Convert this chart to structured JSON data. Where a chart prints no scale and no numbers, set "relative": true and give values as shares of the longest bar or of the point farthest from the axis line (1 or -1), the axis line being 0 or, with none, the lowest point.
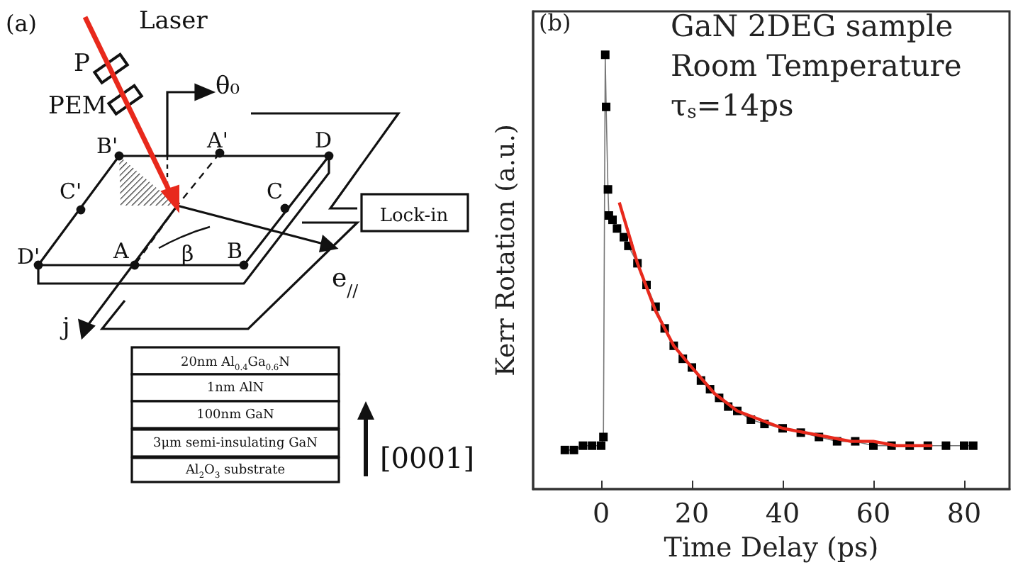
{
  "chart_data": [
    {
      "type": "other",
      "annotations": [
        "(a)",
        "Laser",
        "P",
        "PEM",
        "θ₀",
        "B'",
        "A'",
        "D",
        "C'",
        "C",
        "D'",
        "A",
        "β",
        "B",
        "e$_{//}$",
        "j",
        "Lock-in",
        "20nm Al$_{0.4}$Ga$_{0.6}$N",
        "1nm AlN",
        "100nm GaN",
        "3μm semi-insulating GaN",
        "Al$_{2}$O$_{3}$ substrate",
        "[0001]"
      ]
    },
    {
      "type": "line",
      "xlabel": "Time Delay (ps)",
      "ylabel": "Kerr Rotation (a.u.)",
      "relative": true,
      "annotations": [
        "(b)",
        "GaN 2DEG sample",
        "Room Temperature",
        "τ$_{s}$=14ps"
      ],
      "xlim": [
        -15,
        90
      ],
      "xticks": [
        0,
        20,
        40,
        60,
        80
      ],
      "grid": false,
      "series": [
        {
          "color": "#000000",
          "marker": "square",
          "x": [
            -8,
            -6,
            -4,
            -2,
            0,
            0.5,
            0.9,
            1.1,
            1.5,
            1.7,
            2.5,
            3.5,
            5,
            6,
            8,
            10,
            12,
            14,
            16,
            18,
            20,
            22,
            24,
            26,
            28,
            30,
            33,
            36,
            40,
            44,
            48,
            52,
            56,
            60,
            64,
            68,
            72,
            76,
            80,
            82
          ],
          "values": [
            0.09,
            0.09,
            0.1,
            0.1,
            0.1,
            0.12,
            1.0,
            0.88,
            0.69,
            0.63,
            0.62,
            0.6,
            0.58,
            0.56,
            0.52,
            0.47,
            0.42,
            0.37,
            0.33,
            0.3,
            0.28,
            0.25,
            0.23,
            0.21,
            0.19,
            0.18,
            0.16,
            0.15,
            0.14,
            0.13,
            0.12,
            0.11,
            0.11,
            0.1,
            0.1,
            0.1,
            0.1,
            0.1,
            0.1,
            0.1
          ]
        },
        {
          "color": "#e8291c",
          "marker": "none",
          "x": [
            4,
            8,
            12,
            16,
            20,
            25,
            30,
            35,
            40,
            45,
            50,
            55,
            60,
            65,
            73
          ],
          "values": [
            0.66,
            0.52,
            0.41,
            0.33,
            0.28,
            0.22,
            0.18,
            0.16,
            0.14,
            0.13,
            0.12,
            0.11,
            0.11,
            0.1,
            0.1
          ]
        }
      ]
    }
  ]
}
